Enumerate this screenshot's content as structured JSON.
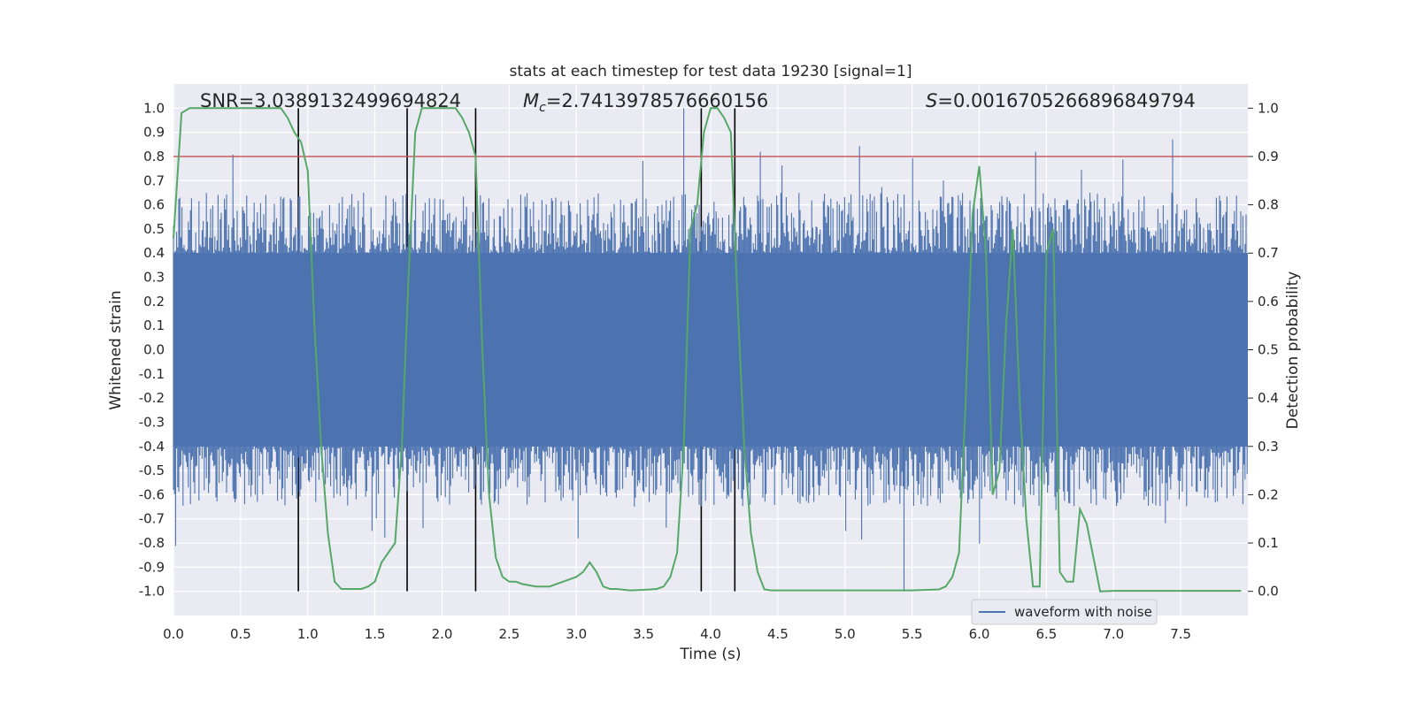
{
  "chart_data": {
    "type": "line",
    "title": "stats at each timestep for test data 19230 [signal=1]",
    "xlabel": "Time (s)",
    "ylabel_left": "Whitened strain",
    "ylabel_right": "Detection probability",
    "xlim": [
      0.0,
      8.0
    ],
    "ylim_left": [
      -1.1,
      1.1
    ],
    "ylim_right": [
      -0.05,
      1.05
    ],
    "x_ticks": [
      "0.0",
      "0.5",
      "1.0",
      "1.5",
      "2.0",
      "2.5",
      "3.0",
      "3.5",
      "4.0",
      "4.5",
      "5.0",
      "5.5",
      "6.0",
      "6.5",
      "7.0",
      "7.5"
    ],
    "y_ticks_left": [
      "1.0",
      "0.9",
      "0.8",
      "0.7",
      "0.6",
      "0.5",
      "0.4",
      "0.3",
      "0.2",
      "0.1",
      "0.0",
      "-0.1",
      "-0.2",
      "-0.3",
      "-0.4",
      "-0.5",
      "-0.6",
      "-0.7",
      "-0.8",
      "-0.9",
      "-1.0"
    ],
    "y_ticks_right": [
      "1.0",
      "0.9",
      "0.8",
      "0.7",
      "0.6",
      "0.5",
      "0.4",
      "0.3",
      "0.2",
      "0.1",
      "0.0"
    ],
    "grid": true,
    "legend_position": "lower-right",
    "annotations": {
      "snr": "SNR=3.0389132499694824",
      "mc_symbol": "M",
      "mc_sub": "c",
      "mc_value": "=2.7413978576660156",
      "s_symbol": "S",
      "s_value": "=0.0016705266896849794"
    },
    "colors": {
      "waveform": "#4c72b0",
      "probability": "#55a868",
      "threshold": "#c44e52",
      "markers": "#000000",
      "background": "#eaeaf2",
      "grid": "#ffffff"
    },
    "series": [
      {
        "name": "waveform with noise",
        "axis": "left",
        "kind": "noise_band",
        "core_amplitude": 0.4,
        "typical_peak": 0.6,
        "max_peak": 1.0,
        "min_peak": -1.0
      },
      {
        "axis": "right",
        "x": [
          0.0,
          0.06,
          0.12,
          0.2,
          0.4,
          0.6,
          0.8,
          0.85,
          0.9,
          0.95,
          1.0,
          1.05,
          1.1,
          1.15,
          1.2,
          1.25,
          1.3,
          1.4,
          1.45,
          1.5,
          1.55,
          1.6,
          1.65,
          1.7,
          1.75,
          1.8,
          1.85,
          1.9,
          2.0,
          2.1,
          2.15,
          2.2,
          2.25,
          2.3,
          2.35,
          2.4,
          2.45,
          2.5,
          2.55,
          2.6,
          2.7,
          2.8,
          2.9,
          3.0,
          3.05,
          3.1,
          3.15,
          3.2,
          3.25,
          3.3,
          3.4,
          3.5,
          3.6,
          3.65,
          3.7,
          3.75,
          3.8,
          3.85,
          3.9,
          3.95,
          4.0,
          4.05,
          4.1,
          4.15,
          4.2,
          4.25,
          4.3,
          4.35,
          4.4,
          4.45,
          4.5,
          4.6,
          5.0,
          5.5,
          5.7,
          5.75,
          5.8,
          5.85,
          5.9,
          5.95,
          6.0,
          6.05,
          6.1,
          6.15,
          6.2,
          6.25,
          6.3,
          6.35,
          6.4,
          6.45,
          6.5,
          6.55,
          6.6,
          6.65,
          6.7,
          6.75,
          6.8,
          6.85,
          6.9,
          7.0,
          7.5,
          7.95
        ],
        "y": [
          0.73,
          0.99,
          1.0,
          1.0,
          1.0,
          1.0,
          1.0,
          0.98,
          0.95,
          0.93,
          0.87,
          0.55,
          0.3,
          0.12,
          0.02,
          0.005,
          0.005,
          0.005,
          0.01,
          0.02,
          0.06,
          0.08,
          0.1,
          0.3,
          0.65,
          0.95,
          1.0,
          1.0,
          1.0,
          1.0,
          0.98,
          0.95,
          0.9,
          0.5,
          0.2,
          0.07,
          0.03,
          0.02,
          0.02,
          0.015,
          0.01,
          0.01,
          0.02,
          0.03,
          0.04,
          0.06,
          0.04,
          0.01,
          0.005,
          0.005,
          0.002,
          0.003,
          0.005,
          0.01,
          0.03,
          0.08,
          0.3,
          0.75,
          0.8,
          0.95,
          1.0,
          1.0,
          0.98,
          0.95,
          0.6,
          0.3,
          0.12,
          0.04,
          0.004,
          0.002,
          0.002,
          0.002,
          0.002,
          0.002,
          0.004,
          0.01,
          0.03,
          0.08,
          0.4,
          0.78,
          0.88,
          0.7,
          0.2,
          0.25,
          0.55,
          0.75,
          0.4,
          0.15,
          0.01,
          0.01,
          0.7,
          0.75,
          0.04,
          0.02,
          0.02,
          0.17,
          0.14,
          0.07,
          0.0,
          0.001,
          0.001,
          0.001
        ]
      }
    ],
    "threshold": {
      "axis": "right",
      "y": 0.9
    },
    "markers": {
      "x": [
        0.93,
        1.74,
        2.25,
        3.93,
        4.18
      ],
      "ymin": -1.0,
      "ymax": 1.0
    }
  }
}
